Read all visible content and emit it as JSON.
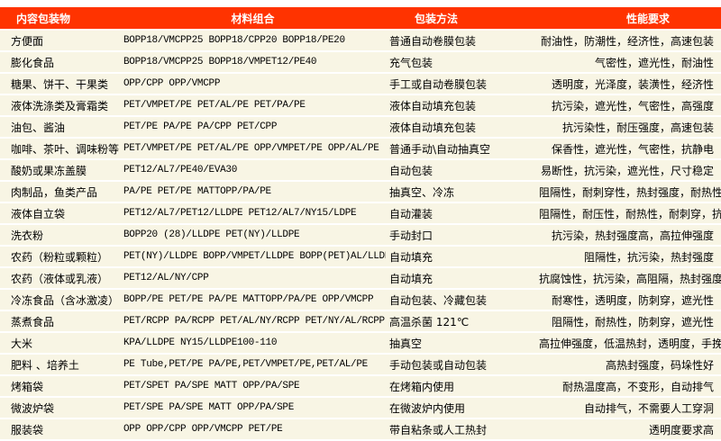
{
  "colors": {
    "header_bg": "#ff3300",
    "header_text": "#ffffff",
    "row_bg": "#f8f5e4"
  },
  "headers": [
    "内容包装物",
    "材料组合",
    "包装方法",
    "性能要求"
  ],
  "rows": [
    [
      "方便面",
      "BOPP18/VMCPP25  BOPP18/CPP20  BOPP18/PE20",
      "普通自动卷膜包装",
      "耐油性，防潮性，经济性，高速包装"
    ],
    [
      "膨化食品",
      "BOPP18/VMCPP25  BOPP18/VMPET12/PE40",
      "充气包装",
      "气密性，遮光性，耐油性"
    ],
    [
      "糖果、饼干、干果类",
      "OPP/CPP OPP/VMCPP",
      "手工或自动卷膜包装",
      "透明度，光泽度，装潢性，经济性"
    ],
    [
      "液体洗涤类及膏霜类",
      "PET/VMPET/PE PET/AL/PE  PET/PA/PE",
      "液体自动填充包装",
      "抗污染，遮光性，气密性，高强度"
    ],
    [
      "油包、酱油",
      "PET/PE  PA/PE PA/CPP PET/CPP",
      "液体自动填充包装",
      "抗污染性，耐压强度，高速包装"
    ],
    [
      "咖啡、茶叶、调味粉等",
      "PET/VMPET/PE PET/AL/PE OPP/VMPET/PE OPP/AL/PE",
      "普通手动\\自动抽真空",
      "保香性，遮光性，气密性，抗静电"
    ],
    [
      "酸奶或果冻盖膜",
      "PET12/AL7/PE40/EVA30",
      "自动包装",
      "易断性，抗污染，遮光性，尺寸稳定"
    ],
    [
      "肉制品，鱼类产品",
      "PA/PE PET/PE MATTOPP/PA/PE",
      "抽真空、冷冻",
      "阻隔性，耐刺穿性，热封强度，耐热性"
    ],
    [
      "液体自立袋",
      "PET12/AL7/PET12/LLDPE PET12/AL7/NY15/LDPE",
      "自动灌装",
      "阻隔性，耐压性，耐热性，耐刺穿，抗污染"
    ],
    [
      "洗衣粉",
      "BOPP20 (28)/LLDPE PET(NY)/LLDPE",
      "手动封口",
      "抗污染，热封强度高，高拉伸强度"
    ],
    [
      "农药（粉粒或颗粒）",
      "PET(NY)/LLDPE BOPP/VMPET/LLDPE BOPP(PET)AL/LLDPE",
      "自动填充",
      "阻隔性，抗污染，热封强度"
    ],
    [
      "农药（液体或乳液）",
      "PET12/AL/NY/CPP",
      "自动填充",
      "抗腐蚀性，抗污染，高阻隔，热封强度"
    ],
    [
      "冷冻食品（含冰激凌）",
      "BOPP/PE PET/PE PA/PE MATTOPP/PA/PE OPP/VMCPP",
      "自动包装、冷藏包装",
      "耐寒性，透明度，防刺穿，遮光性"
    ],
    [
      "蒸煮食品",
      "PET/RCPP PA/RCPP PET/AL/NY/RCPP PET/NY/AL/RCPP",
      "高温杀菌 121℃",
      "阻隔性，耐热性，防刺穿，遮光性"
    ],
    [
      "大米",
      "KPA/LLDPE NY15/LLDPE100-110",
      "抽真空",
      "高拉伸强度，低温热封，透明度，手挽强度高"
    ],
    [
      "肥料 、培养土",
      "PE Tube,PET/PE  PA/PE,PET/VMPET/PE,PET/AL/PE",
      "手动包装或自动包装",
      "高热封强度，码垛性好"
    ],
    [
      "烤箱袋",
      "PET/SPET PA/SPE MATT OPP/PA/SPE",
      "在烤箱内使用",
      "耐热温度高，不变形，自动排气"
    ],
    [
      "微波炉袋",
      "PET/SPE PA/SPE MATT OPP/PA/SPE",
      "在微波炉内使用",
      "自动排气，不需要人工穿洞"
    ],
    [
      "服装袋",
      "OPP  OPP/CPP OPP/VMCPP PET/PE",
      "带自粘条或人工热封",
      "透明度要求高"
    ]
  ]
}
